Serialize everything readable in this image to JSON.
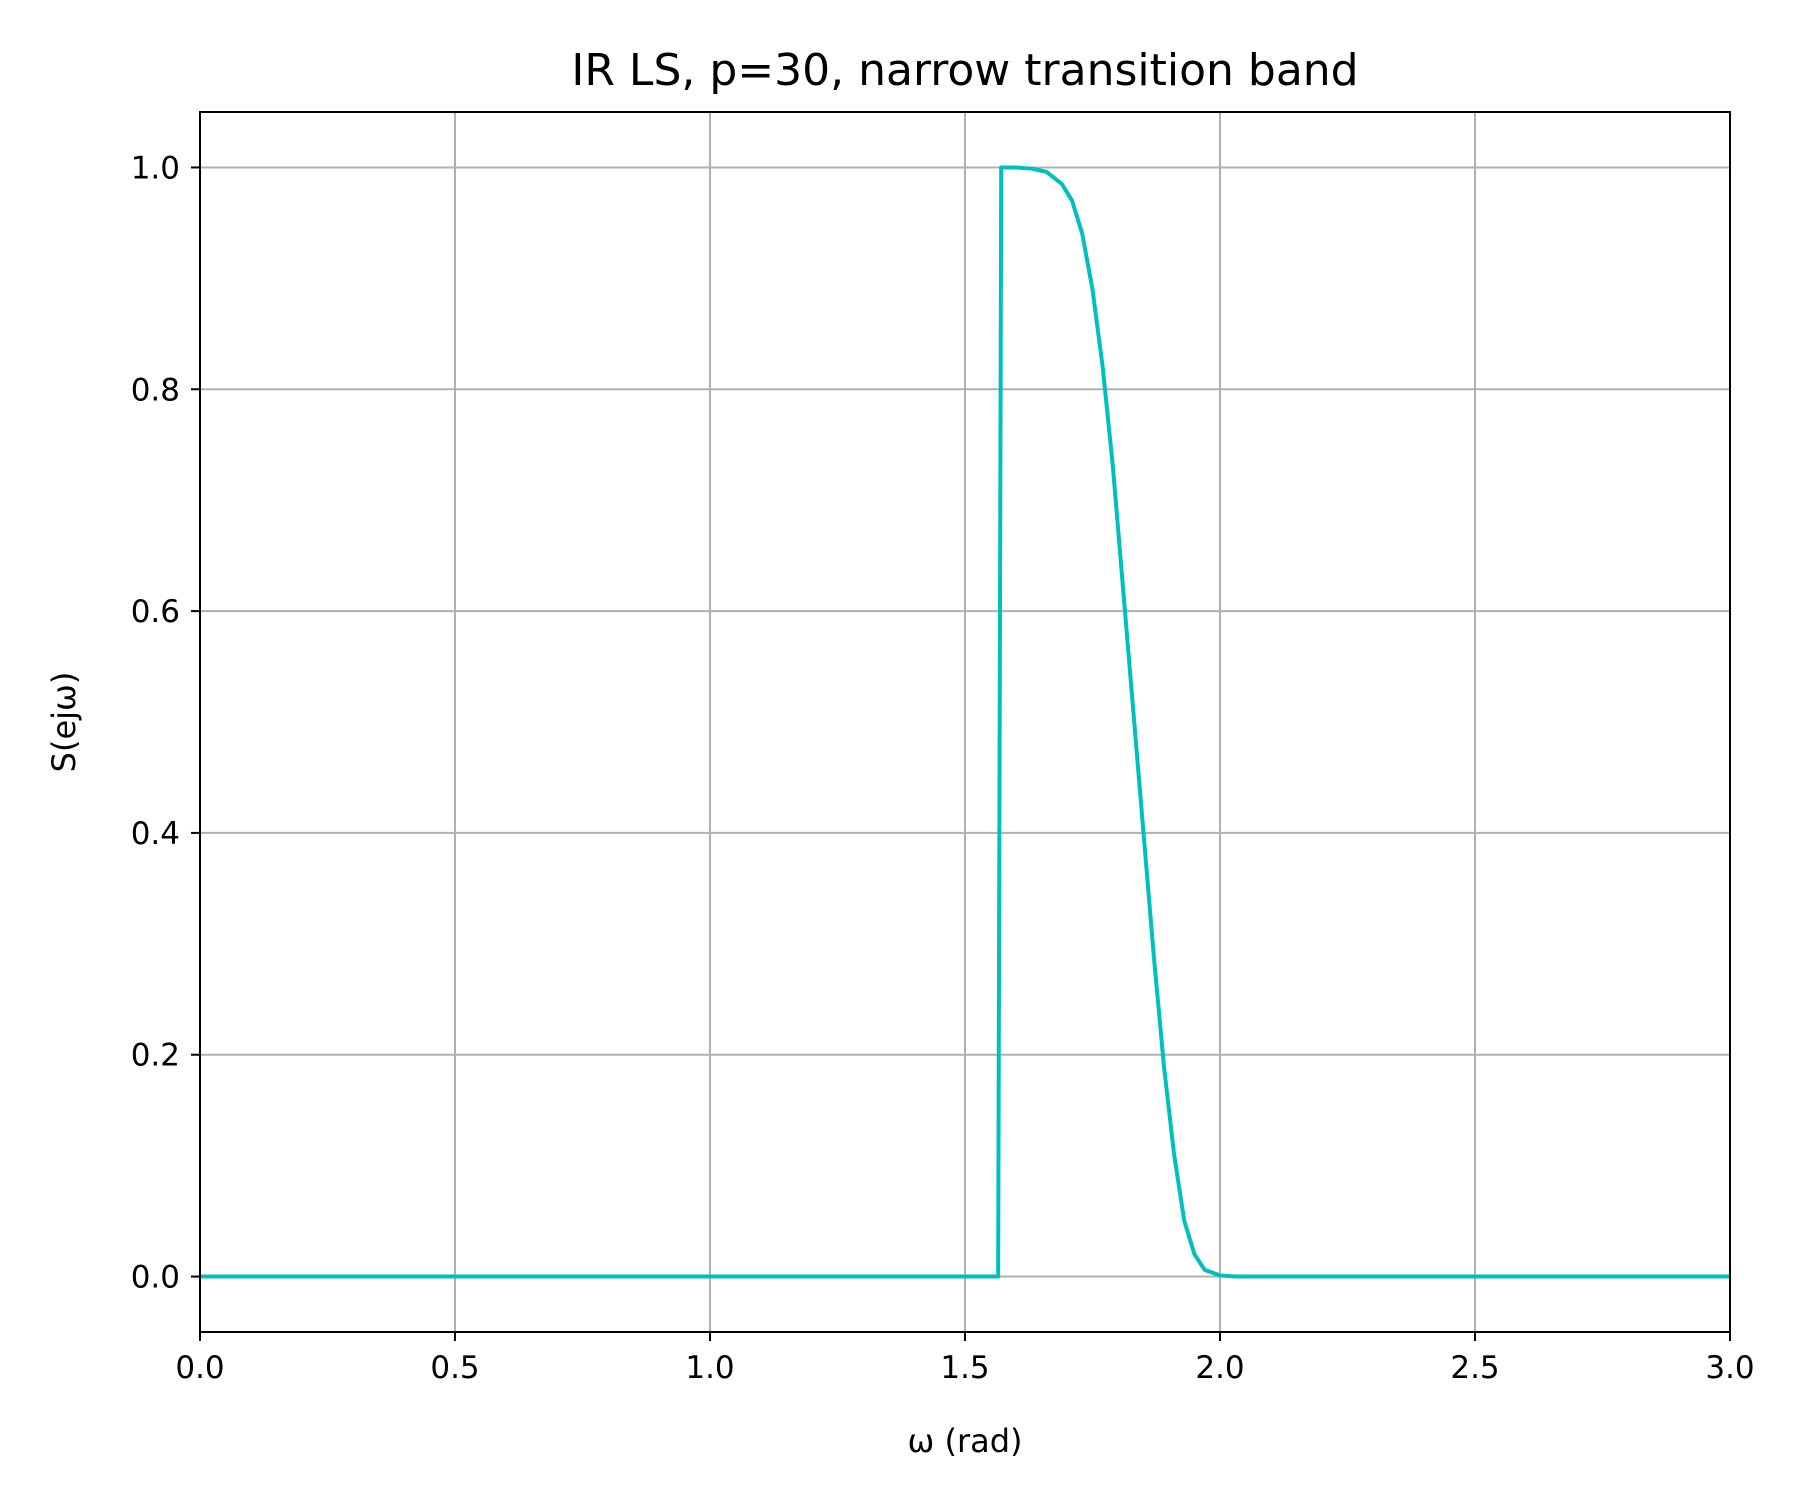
{
  "chart_data": {
    "type": "line",
    "title": "IR LS, p=30, narrow transition band",
    "xlabel": "ω (rad)",
    "ylabel": "S(ejω)",
    "xlim": [
      0.0,
      3.0
    ],
    "ylim": [
      -0.05,
      1.05
    ],
    "xticks": [
      {
        "value": 0.0,
        "label": "0.0"
      },
      {
        "value": 0.5,
        "label": "0.5"
      },
      {
        "value": 1.0,
        "label": "1.0"
      },
      {
        "value": 1.5,
        "label": "1.5"
      },
      {
        "value": 2.0,
        "label": "2.0"
      },
      {
        "value": 2.5,
        "label": "2.5"
      },
      {
        "value": 3.0,
        "label": "3.0"
      }
    ],
    "yticks": [
      {
        "value": 0.0,
        "label": "0.0"
      },
      {
        "value": 0.2,
        "label": "0.2"
      },
      {
        "value": 0.4,
        "label": "0.4"
      },
      {
        "value": 0.6,
        "label": "0.6"
      },
      {
        "value": 0.8,
        "label": "0.8"
      },
      {
        "value": 1.0,
        "label": "1.0"
      }
    ],
    "grid": true,
    "series": [
      {
        "color": "#00bfbf",
        "points": [
          [
            0.0,
            0.0
          ],
          [
            1.565,
            0.0
          ],
          [
            1.571,
            1.0
          ],
          [
            1.6,
            1.0
          ],
          [
            1.63,
            0.999
          ],
          [
            1.66,
            0.996
          ],
          [
            1.69,
            0.985
          ],
          [
            1.71,
            0.97
          ],
          [
            1.73,
            0.94
          ],
          [
            1.75,
            0.89
          ],
          [
            1.77,
            0.82
          ],
          [
            1.79,
            0.73
          ],
          [
            1.81,
            0.62
          ],
          [
            1.83,
            0.51
          ],
          [
            1.85,
            0.4
          ],
          [
            1.87,
            0.29
          ],
          [
            1.89,
            0.19
          ],
          [
            1.91,
            0.11
          ],
          [
            1.93,
            0.05
          ],
          [
            1.95,
            0.02
          ],
          [
            1.97,
            0.006
          ],
          [
            2.0,
            0.001
          ],
          [
            2.03,
            0.0
          ],
          [
            2.1,
            0.0
          ],
          [
            3.0,
            0.0
          ]
        ]
      }
    ]
  }
}
